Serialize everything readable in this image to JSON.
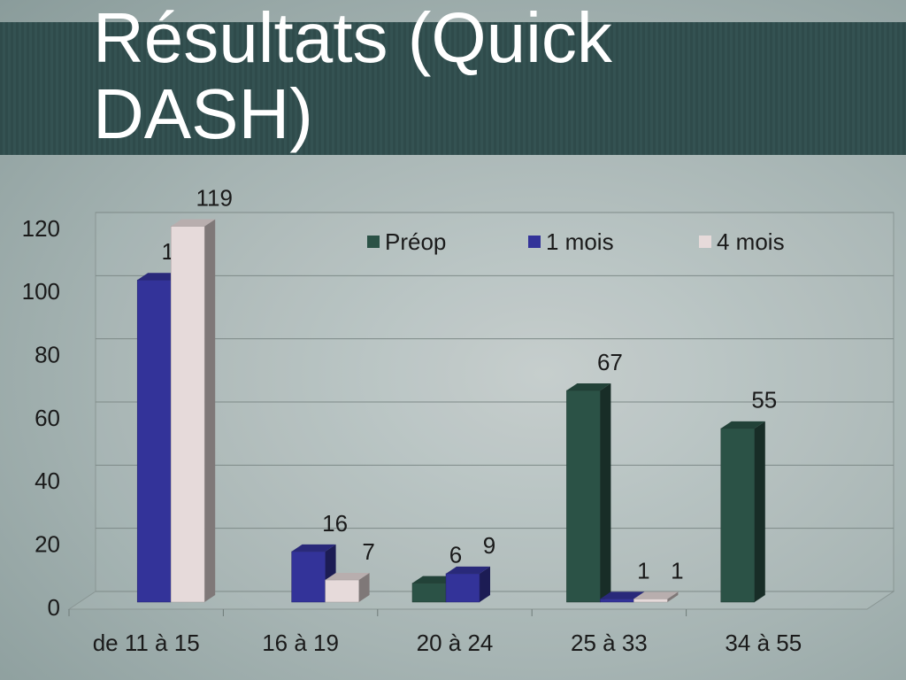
{
  "chart_data": {
    "type": "bar",
    "title": "Résultats (Quick DASH)",
    "categories": [
      "de 11 à 15",
      "16 à 19",
      "20 à 24",
      "25 à 33",
      "34 à 55"
    ],
    "series": [
      {
        "name": "Préop",
        "color": "#2b5246",
        "values": [
          null,
          null,
          6,
          67,
          55
        ]
      },
      {
        "name": "1 mois",
        "color": "#333399",
        "values": [
          102,
          16,
          9,
          1,
          null
        ]
      },
      {
        "name": "4 mois",
        "color": "#e6dada",
        "values": [
          119,
          7,
          null,
          1,
          null
        ]
      }
    ],
    "ylim": [
      0,
      120
    ],
    "yticks": [
      0,
      20,
      40,
      60,
      80,
      100,
      120
    ],
    "grid": true,
    "legend": "top"
  }
}
